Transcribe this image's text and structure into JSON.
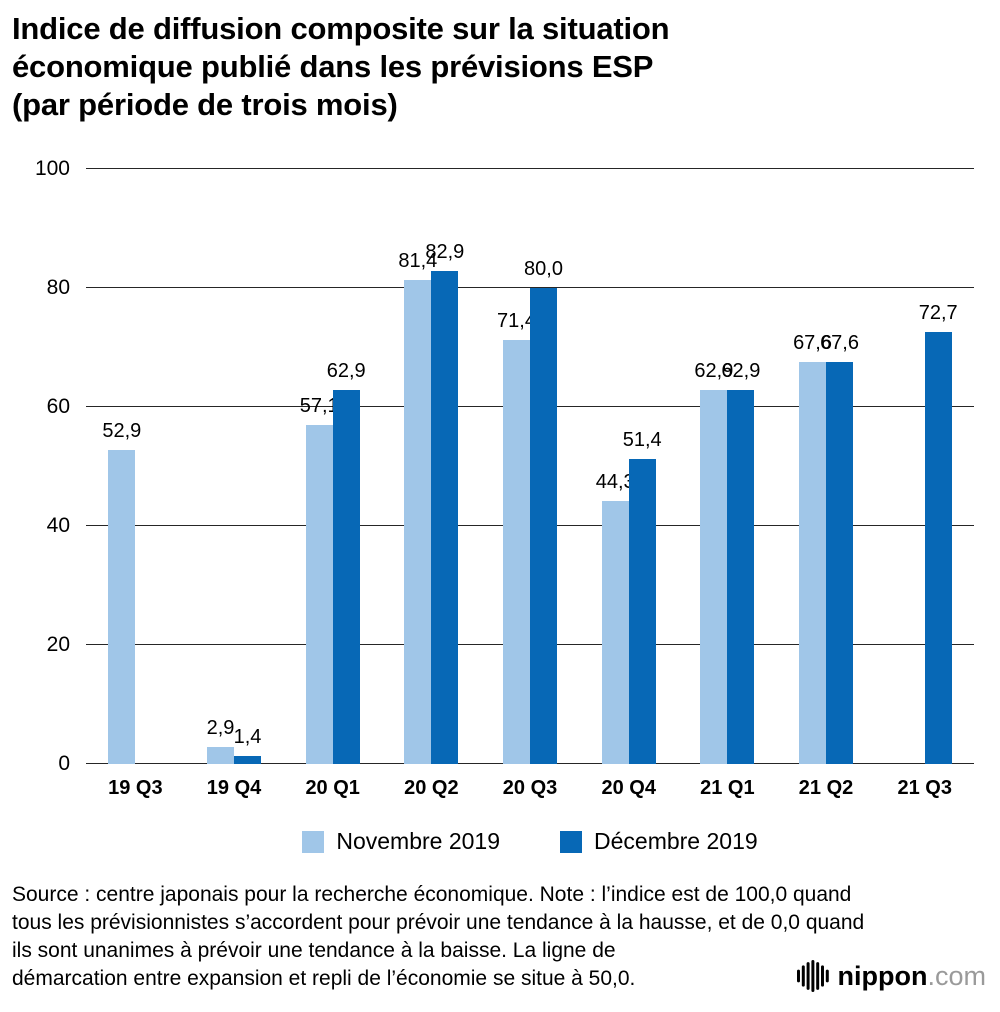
{
  "header": {
    "title_lines": [
      "Indice de diffusion composite sur la situation",
      "économique publié dans les prévisions ESP",
      "(par période de trois mois)"
    ]
  },
  "chart_data": {
    "type": "bar",
    "title": "Indice de diffusion composite sur la situation économique publié dans les prévisions ESP (par période de trois mois)",
    "categories": [
      "19 Q3",
      "19 Q4",
      "20 Q1",
      "20 Q2",
      "20 Q3",
      "20 Q4",
      "21 Q1",
      "21 Q2",
      "21 Q3"
    ],
    "series": [
      {
        "name": "Novembre 2019",
        "color": "#a0c6e8",
        "values": [
          52.9,
          2.9,
          57.1,
          81.4,
          71.4,
          44.3,
          62.9,
          67.6,
          null
        ]
      },
      {
        "name": "Décembre 2019",
        "color": "#0768b6",
        "values": [
          null,
          1.4,
          62.9,
          82.9,
          80.0,
          51.4,
          62.9,
          67.6,
          72.7
        ]
      }
    ],
    "ylim": [
      0,
      100
    ],
    "yticks": [
      0,
      20,
      40,
      60,
      80,
      100
    ],
    "grid": true,
    "legend_position": "bottom",
    "decimal_separator": ","
  },
  "footer": {
    "source_lines": [
      "Source : centre japonais pour la recherche économique. Note : l’indice est de 100,0 quand",
      "tous les prévisionnistes s’accordent pour prévoir une tendance à la hausse, et de 0,0 quand",
      "ils sont unanimes à prévoir une tendance à la baisse. La ligne de",
      "démarcation entre expansion et repli de l’économie se situe à 50,0."
    ],
    "logo": {
      "name": "nippon.com",
      "text_main": "nippon",
      "text_suffix": ".com"
    }
  }
}
